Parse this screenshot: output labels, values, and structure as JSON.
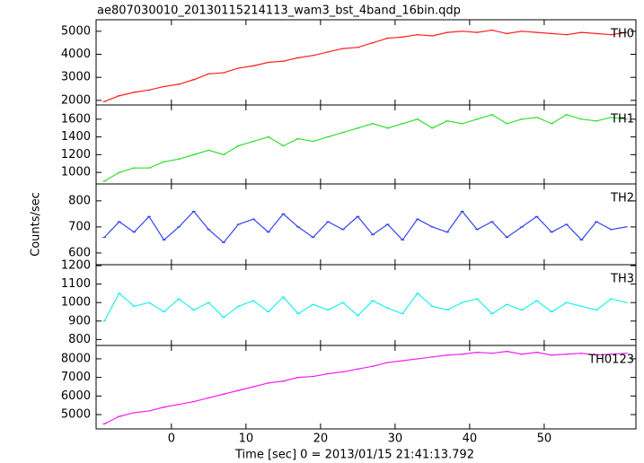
{
  "title": "ae807030010_20130115214113_wam3_bst_4band_16bin.qdp",
  "xlabel": "Time [sec] 0 = 2013/01/15 21:41:13.792",
  "ylabel": "Counts/sec",
  "chart_data": [
    {
      "type": "line",
      "xlim": [
        -10.1,
        62.3
      ],
      "xticks": [
        0,
        10,
        20,
        30,
        40,
        50
      ],
      "ylim": [
        1800,
        5500
      ],
      "yticks": [
        2000,
        3000,
        4000,
        5000
      ],
      "x": [
        -9,
        -7,
        -5,
        -3,
        -1,
        1,
        3,
        5,
        7,
        9,
        11,
        13,
        15,
        17,
        19,
        21,
        23,
        25,
        27,
        29,
        31,
        33,
        35,
        37,
        39,
        41,
        43,
        45,
        47,
        49,
        51,
        53,
        55,
        57,
        59,
        61
      ],
      "series": [
        {
          "name": "TH0",
          "color": "#ff2020",
          "values": [
            1950,
            2200,
            2350,
            2450,
            2600,
            2700,
            2900,
            3150,
            3200,
            3400,
            3500,
            3650,
            3700,
            3850,
            3950,
            4100,
            4250,
            4300,
            4500,
            4700,
            4750,
            4850,
            4800,
            4950,
            5000,
            4950,
            5050,
            4900,
            5000,
            4950,
            4900,
            4850,
            4950,
            4900,
            4850,
            4950
          ]
        }
      ]
    },
    {
      "type": "line",
      "xlim": [
        -10.1,
        62.3
      ],
      "xticks": [
        0,
        10,
        20,
        30,
        40,
        50
      ],
      "ylim": [
        870,
        1760
      ],
      "yticks": [
        1000,
        1200,
        1400,
        1600
      ],
      "x": [
        -9,
        -7,
        -5,
        -3,
        -1,
        1,
        3,
        5,
        7,
        9,
        11,
        13,
        15,
        17,
        19,
        21,
        23,
        25,
        27,
        29,
        31,
        33,
        35,
        37,
        39,
        41,
        43,
        45,
        47,
        49,
        51,
        53,
        55,
        57,
        59,
        61
      ],
      "series": [
        {
          "name": "TH1",
          "color": "#33dd33",
          "values": [
            900,
            1000,
            1050,
            1050,
            1120,
            1150,
            1200,
            1250,
            1200,
            1300,
            1350,
            1400,
            1300,
            1380,
            1350,
            1400,
            1450,
            1500,
            1550,
            1500,
            1550,
            1600,
            1500,
            1580,
            1550,
            1600,
            1650,
            1550,
            1600,
            1620,
            1550,
            1650,
            1600,
            1580,
            1620,
            1600
          ]
        }
      ]
    },
    {
      "type": "line",
      "xlim": [
        -10.1,
        62.3
      ],
      "xticks": [
        0,
        10,
        20,
        30,
        40,
        50
      ],
      "ylim": [
        555,
        865
      ],
      "yticks": [
        600,
        700,
        800
      ],
      "x": [
        -9,
        -7,
        -5,
        -3,
        -1,
        1,
        3,
        5,
        7,
        9,
        11,
        13,
        15,
        17,
        19,
        21,
        23,
        25,
        27,
        29,
        31,
        33,
        35,
        37,
        39,
        41,
        43,
        45,
        47,
        49,
        51,
        53,
        55,
        57,
        59,
        61
      ],
      "series": [
        {
          "name": "TH2",
          "color": "#3344ee",
          "values": [
            660,
            720,
            680,
            740,
            650,
            700,
            760,
            690,
            640,
            710,
            730,
            680,
            750,
            700,
            660,
            720,
            690,
            740,
            670,
            710,
            650,
            730,
            700,
            680,
            760,
            690,
            720,
            660,
            700,
            740,
            680,
            710,
            650,
            720,
            690,
            700
          ]
        }
      ]
    },
    {
      "type": "line",
      "xlim": [
        -10.1,
        62.3
      ],
      "xticks": [
        0,
        10,
        20,
        30,
        40,
        50
      ],
      "ylim": [
        768,
        1205
      ],
      "yticks": [
        800,
        900,
        1000,
        1100,
        1200
      ],
      "x": [
        -9,
        -7,
        -5,
        -3,
        -1,
        1,
        3,
        5,
        7,
        9,
        11,
        13,
        15,
        17,
        19,
        21,
        23,
        25,
        27,
        29,
        31,
        33,
        35,
        37,
        39,
        41,
        43,
        45,
        47,
        49,
        51,
        53,
        55,
        57,
        59,
        61
      ],
      "series": [
        {
          "name": "TH3",
          "color": "#22eeee",
          "values": [
            900,
            1050,
            980,
            1000,
            950,
            1020,
            960,
            1000,
            920,
            980,
            1010,
            950,
            1030,
            940,
            990,
            960,
            1000,
            930,
            1010,
            970,
            940,
            1050,
            980,
            960,
            1000,
            1020,
            940,
            990,
            960,
            1010,
            950,
            1000,
            980,
            960,
            1020,
            1000
          ]
        }
      ]
    },
    {
      "type": "line",
      "xlim": [
        -10.1,
        62.3
      ],
      "xticks": [
        0,
        10,
        20,
        30,
        40,
        50
      ],
      "ylim": [
        4230,
        8720
      ],
      "yticks": [
        5000,
        6000,
        7000,
        8000
      ],
      "x": [
        -9,
        -7,
        -5,
        -3,
        -1,
        1,
        3,
        5,
        7,
        9,
        11,
        13,
        15,
        17,
        19,
        21,
        23,
        25,
        27,
        29,
        31,
        33,
        35,
        37,
        39,
        41,
        43,
        45,
        47,
        49,
        51,
        53,
        55,
        57,
        59,
        61
      ],
      "series": [
        {
          "name": "TH0123",
          "color": "#ee22ee",
          "values": [
            4500,
            4900,
            5100,
            5200,
            5400,
            5550,
            5700,
            5900,
            6100,
            6300,
            6500,
            6700,
            6800,
            7000,
            7050,
            7200,
            7300,
            7450,
            7600,
            7800,
            7900,
            8000,
            8100,
            8200,
            8250,
            8350,
            8300,
            8400,
            8250,
            8350,
            8200,
            8250,
            8300,
            8200,
            8250,
            8300
          ]
        }
      ]
    }
  ]
}
